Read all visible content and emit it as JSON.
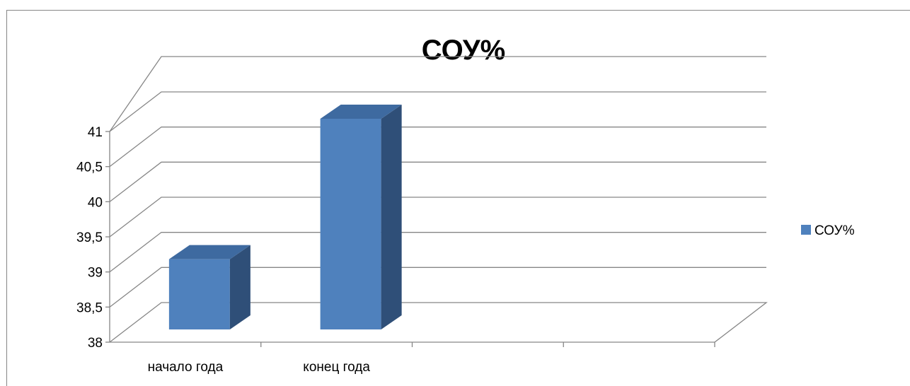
{
  "chart_data": {
    "type": "bar",
    "title": "СОУ%",
    "categories": [
      "начало года",
      "конец года"
    ],
    "series": [
      {
        "name": "СОУ%",
        "values": [
          39,
          41
        ],
        "color": "#4F81BD"
      }
    ],
    "ylim": [
      38,
      41
    ],
    "yticks": [
      "38",
      "38,5",
      "39",
      "39,5",
      "40",
      "40,5",
      "41"
    ],
    "grid": true,
    "legend": "right",
    "three_d": true
  }
}
